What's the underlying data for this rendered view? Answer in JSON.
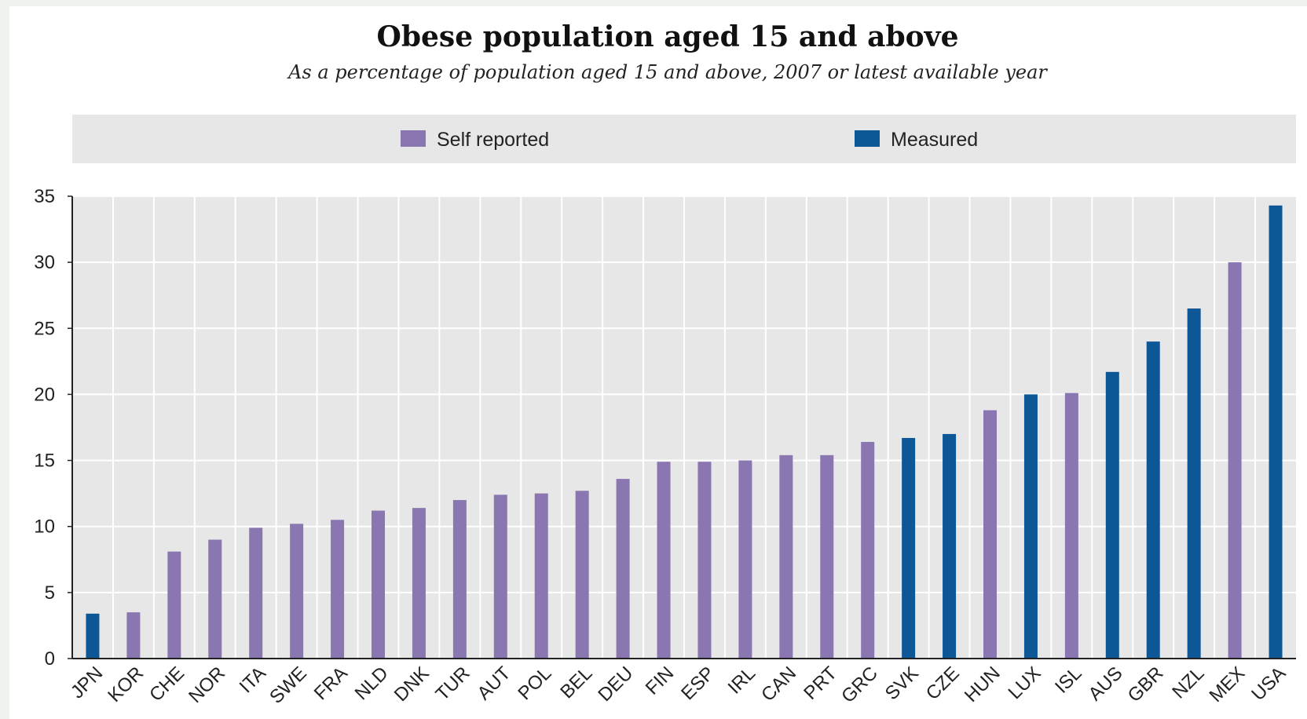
{
  "chart_data": {
    "type": "bar",
    "title": "Obese population aged 15 and above",
    "subtitle": "As a percentage of population aged 15 and above, 2007 or latest available year",
    "xlabel": "",
    "ylabel": "",
    "ylim": [
      0,
      35
    ],
    "yticks": [
      0,
      5,
      10,
      15,
      20,
      25,
      30,
      35
    ],
    "grid": true,
    "legend_position": "top",
    "categories": [
      "JPN",
      "KOR",
      "CHE",
      "NOR",
      "ITA",
      "SWE",
      "FRA",
      "NLD",
      "DNK",
      "TUR",
      "AUT",
      "POL",
      "BEL",
      "DEU",
      "FIN",
      "ESP",
      "IRL",
      "CAN",
      "PRT",
      "GRC",
      "SVK",
      "CZE",
      "HUN",
      "LUX",
      "ISL",
      "AUS",
      "GBR",
      "NZL",
      "MEX",
      "USA"
    ],
    "values": [
      3.4,
      3.5,
      8.1,
      9.0,
      9.9,
      10.2,
      10.5,
      11.2,
      11.4,
      12.0,
      12.4,
      12.5,
      12.7,
      13.6,
      14.9,
      14.9,
      15.0,
      15.4,
      15.4,
      16.4,
      16.7,
      17.0,
      18.8,
      20.0,
      20.1,
      21.7,
      24.0,
      26.5,
      30.0,
      34.3
    ],
    "method": [
      "Measured",
      "Self reported",
      "Self reported",
      "Self reported",
      "Self reported",
      "Self reported",
      "Self reported",
      "Self reported",
      "Self reported",
      "Self reported",
      "Self reported",
      "Self reported",
      "Self reported",
      "Self reported",
      "Self reported",
      "Self reported",
      "Self reported",
      "Self reported",
      "Self reported",
      "Self reported",
      "Measured",
      "Measured",
      "Self reported",
      "Measured",
      "Self reported",
      "Measured",
      "Measured",
      "Measured",
      "Self reported",
      "Measured"
    ],
    "legend": [
      {
        "name": "Self reported",
        "color": "#8a76b0"
      },
      {
        "name": "Measured",
        "color": "#0e5796"
      }
    ]
  },
  "colors": {
    "plot_background": "#e7e7e7",
    "legend_background": "#e7e7e7",
    "gridline": "#ffffff",
    "axis": "#222222"
  }
}
